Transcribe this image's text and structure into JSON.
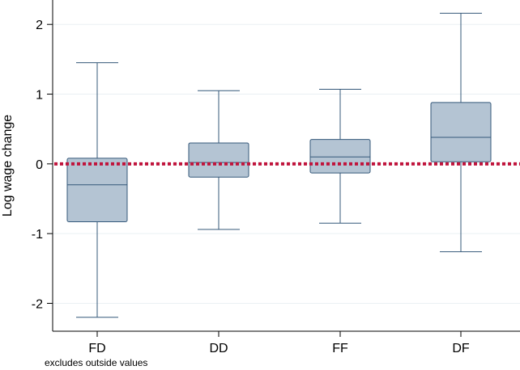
{
  "chart_data": {
    "type": "box",
    "ylabel": "Log wage change",
    "xlabel": "",
    "ylim": [
      -2.4,
      2.35
    ],
    "yticks": [
      -2,
      -1,
      0,
      1,
      2
    ],
    "ytick_labels": [
      "-2",
      "-1",
      "0",
      "1",
      "2"
    ],
    "categories": [
      "FD",
      "DD",
      "FF",
      "DF"
    ],
    "boxes": [
      {
        "category": "FD",
        "whisker_low": -2.2,
        "q1": -0.83,
        "median": -0.3,
        "q3": 0.08,
        "whisker_high": 1.45
      },
      {
        "category": "DD",
        "whisker_low": -0.94,
        "q1": -0.19,
        "median": 0.02,
        "q3": 0.3,
        "whisker_high": 1.05
      },
      {
        "category": "FF",
        "whisker_low": -0.85,
        "q1": -0.13,
        "median": 0.1,
        "q3": 0.35,
        "whisker_high": 1.07
      },
      {
        "category": "DF",
        "whisker_low": -1.26,
        "q1": 0.03,
        "median": 0.38,
        "q3": 0.88,
        "whisker_high": 2.16
      }
    ],
    "reference_line": {
      "y": 0,
      "style": "dotted",
      "color": "#c0143c"
    },
    "note": "excludes outside values",
    "grid": true,
    "colors": {
      "box_fill": "#b4c4d3",
      "box_stroke": "#34587a",
      "grid": "#eaf0f4"
    }
  }
}
